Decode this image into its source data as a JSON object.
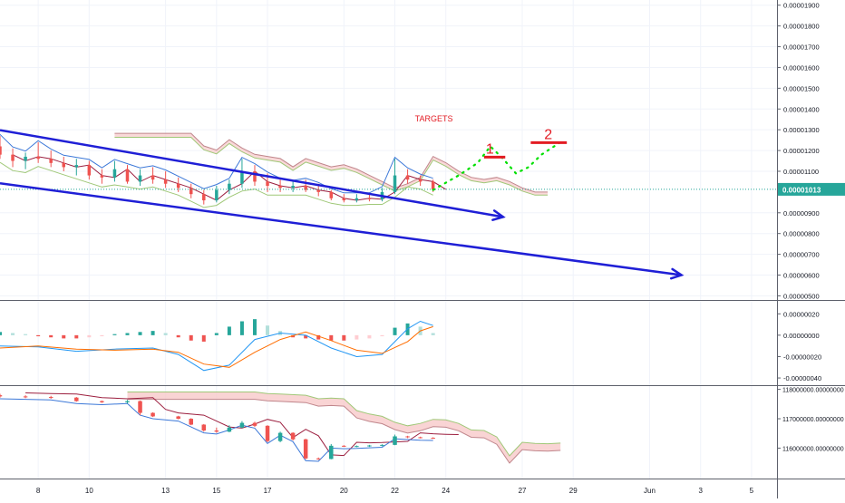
{
  "colors": {
    "up": "#26a69a",
    "down": "#ef5350",
    "trendline": "#1f1fd6",
    "target_line": "#e31b23",
    "projection": "#00e000",
    "last_price_bg": "#26a69a",
    "grid": "#f0f3fa",
    "pane_border": "#5d606b",
    "cloud": "#f7c9c9",
    "cloud_line_a": "#a0c878",
    "cloud_line_b": "#c0868c",
    "kijun": "#9c1f3f",
    "bb": "#3c78d8",
    "macd_line": "#2196f3",
    "signal_line": "#ff6d00",
    "hist_up_strong": "#26a69a",
    "hist_up_weak": "#b2dfdb",
    "hist_down_strong": "#ef5350",
    "hist_down_weak": "#ffcdd2"
  },
  "annotations": {
    "targets_label": "TARGETS",
    "target_1_label": "1",
    "target_2_label": "2",
    "target_1_price": 1.168e-05,
    "target_2_price": 1.238e-05
  },
  "chart_data": [
    {
      "type": "candlestick",
      "pane": "price",
      "yaxis_ticks": [
        "0.00001900",
        "0.00001800",
        "0.00001700",
        "0.00001600",
        "0.00001500",
        "0.00001400",
        "0.00001300",
        "0.00001200",
        "0.00001100",
        "0.00000900",
        "0.00000800",
        "0.00000700",
        "0.00000600",
        "0.00000500"
      ],
      "last_price": "0.00001013",
      "last_price_value": 1.013e-05,
      "ylim": [
        4.8e-06,
        1.925e-05
      ],
      "x_tick_labels": [
        "8",
        "10",
        "13",
        "15",
        "17",
        "20",
        "22",
        "24",
        "27",
        "29",
        "Jun",
        "3",
        "5"
      ],
      "x_tick_dates": [
        "05-08",
        "05-10",
        "05-13",
        "05-15",
        "05-17",
        "05-20",
        "05-22",
        "05-24",
        "05-27",
        "05-29",
        "06-01",
        "06-03",
        "06-05"
      ],
      "x_domain": [
        "05-06 12:00",
        "06-06 00:00"
      ],
      "trendlines": [
        {
          "name": "upper-channel",
          "start": [
            "05-06 12:00",
            1.298e-05
          ],
          "end": [
            "05-26 06:00",
            8.8e-06
          ]
        },
        {
          "name": "lower-channel",
          "start": [
            "05-06 12:00",
            1.042e-05
          ],
          "end": [
            "06-02 06:00",
            6e-06
          ]
        }
      ],
      "target_segments": [
        {
          "name": "target-1",
          "x": [
            "05-25 12:00",
            "05-26 08:00"
          ],
          "y": 1.168e-05
        },
        {
          "name": "target-2",
          "x": [
            "05-27 08:00",
            "05-28 18:00"
          ],
          "y": 1.238e-05
        }
      ],
      "projection_path": [
        [
          "05-23 12:00",
          1.01e-05
        ],
        [
          "05-24 12:00",
          1.08e-05
        ],
        [
          "05-25 06:00",
          1.14e-05
        ],
        [
          "05-25 18:00",
          1.22e-05
        ],
        [
          "05-26 06:00",
          1.16e-05
        ],
        [
          "05-26 18:00",
          1.09e-05
        ],
        [
          "05-27 06:00",
          1.12e-05
        ],
        [
          "05-27 18:00",
          1.18e-05
        ],
        [
          "05-28 12:00",
          1.24e-05
        ]
      ],
      "candles": [
        {
          "t": "05-06 12:00",
          "o": 1.22e-05,
          "h": 1.27e-05,
          "l": 1.16e-05,
          "c": 1.18e-05
        },
        {
          "t": "05-07 00:00",
          "o": 1.18e-05,
          "h": 1.21e-05,
          "l": 1.12e-05,
          "c": 1.15e-05
        },
        {
          "t": "05-07 12:00",
          "o": 1.15e-05,
          "h": 1.19e-05,
          "l": 1.11e-05,
          "c": 1.17e-05
        },
        {
          "t": "05-08 00:00",
          "o": 1.17e-05,
          "h": 1.24e-05,
          "l": 1.14e-05,
          "c": 1.16e-05
        },
        {
          "t": "05-08 12:00",
          "o": 1.16e-05,
          "h": 1.2e-05,
          "l": 1.12e-05,
          "c": 1.14e-05
        },
        {
          "t": "05-09 00:00",
          "o": 1.14e-05,
          "h": 1.17e-05,
          "l": 1.1e-05,
          "c": 1.12e-05
        },
        {
          "t": "05-09 12:00",
          "o": 1.12e-05,
          "h": 1.16e-05,
          "l": 1.08e-05,
          "c": 1.13e-05
        },
        {
          "t": "05-10 00:00",
          "o": 1.13e-05,
          "h": 1.15e-05,
          "l": 1.06e-05,
          "c": 1.08e-05
        },
        {
          "t": "05-10 12:00",
          "o": 1.08e-05,
          "h": 1.11e-05,
          "l": 1.04e-05,
          "c": 1.07e-05
        },
        {
          "t": "05-11 00:00",
          "o": 1.07e-05,
          "h": 1.15e-05,
          "l": 1.05e-05,
          "c": 1.11e-05
        },
        {
          "t": "05-11 12:00",
          "o": 1.11e-05,
          "h": 1.13e-05,
          "l": 1.04e-05,
          "c": 1.05e-05
        },
        {
          "t": "05-12 00:00",
          "o": 1.05e-05,
          "h": 1.11e-05,
          "l": 1.03e-05,
          "c": 1.08e-05
        },
        {
          "t": "05-12 12:00",
          "o": 1.08e-05,
          "h": 1.12e-05,
          "l": 1.04e-05,
          "c": 1.06e-05
        },
        {
          "t": "05-13 00:00",
          "o": 1.06e-05,
          "h": 1.1e-05,
          "l": 1.02e-05,
          "c": 1.04e-05
        },
        {
          "t": "05-13 12:00",
          "o": 1.04e-05,
          "h": 1.07e-05,
          "l": 1e-05,
          "c": 1.02e-05
        },
        {
          "t": "05-14 00:00",
          "o": 1.02e-05,
          "h": 1.04e-05,
          "l": 9.7e-06,
          "c": 9.9e-06
        },
        {
          "t": "05-14 12:00",
          "o": 9.9e-06,
          "h": 1.01e-05,
          "l": 9.4e-06,
          "c": 9.6e-06
        },
        {
          "t": "05-15 00:00",
          "o": 9.6e-06,
          "h": 1.03e-05,
          "l": 9.5e-06,
          "c": 1.01e-05
        },
        {
          "t": "05-15 12:00",
          "o": 1.01e-05,
          "h": 1.06e-05,
          "l": 9.9e-06,
          "c": 1.04e-05
        },
        {
          "t": "05-16 00:00",
          "o": 1.04e-05,
          "h": 1.16e-05,
          "l": 1.02e-05,
          "c": 1.1e-05
        },
        {
          "t": "05-16 12:00",
          "o": 1.1e-05,
          "h": 1.13e-05,
          "l": 1.03e-05,
          "c": 1.05e-05
        },
        {
          "t": "05-17 00:00",
          "o": 1.05e-05,
          "h": 1.09e-05,
          "l": 1e-05,
          "c": 1.03e-05
        },
        {
          "t": "05-17 12:00",
          "o": 1.03e-05,
          "h": 1.06e-05,
          "l": 1e-05,
          "c": 1.02e-05
        },
        {
          "t": "05-18 00:00",
          "o": 1.02e-05,
          "h": 1.05e-05,
          "l": 1e-05,
          "c": 1.03e-05
        },
        {
          "t": "05-18 12:00",
          "o": 1.03e-05,
          "h": 1.06e-05,
          "l": 1e-05,
          "c": 1.01e-05
        },
        {
          "t": "05-19 00:00",
          "o": 1.01e-05,
          "h": 1.04e-05,
          "l": 9.8e-06,
          "c": 1e-05
        },
        {
          "t": "05-19 12:00",
          "o": 1e-05,
          "h": 1.01e-05,
          "l": 9.6e-06,
          "c": 9.7e-06
        },
        {
          "t": "05-20 00:00",
          "o": 9.7e-06,
          "h": 9.9e-06,
          "l": 9.5e-06,
          "c": 9.6e-06
        },
        {
          "t": "05-20 12:00",
          "o": 9.6e-06,
          "h": 9.9e-06,
          "l": 9.5e-06,
          "c": 9.7e-06
        },
        {
          "t": "05-21 00:00",
          "o": 9.7e-06,
          "h": 9.9e-06,
          "l": 9.55e-06,
          "c": 9.65e-06
        },
        {
          "t": "05-21 12:00",
          "o": 9.65e-06,
          "h": 1.02e-05,
          "l": 9.55e-06,
          "c": 1e-05
        },
        {
          "t": "05-22 00:00",
          "o": 1e-05,
          "h": 1.16e-05,
          "l": 9.9e-06,
          "c": 1.08e-05
        },
        {
          "t": "05-22 12:00",
          "o": 1.08e-05,
          "h": 1.11e-05,
          "l": 1.04e-05,
          "c": 1.06e-05
        },
        {
          "t": "05-23 00:00",
          "o": 1.06e-05,
          "h": 1.08e-05,
          "l": 1.03e-05,
          "c": 1.05e-05
        },
        {
          "t": "05-23 12:00",
          "o": 1.05e-05,
          "h": 1.06e-05,
          "l": 1e-05,
          "c": 1.013e-05
        }
      ]
    },
    {
      "type": "bar",
      "pane": "macd",
      "yaxis_ticks": [
        "0.00000020",
        "0.00000000",
        "-0.00000020",
        "-0.00000040"
      ],
      "ylim": [
        -4.25e-07,
        2.7e-07
      ],
      "x_domain": [
        "05-06 12:00",
        "06-06 00:00"
      ],
      "histogram": [
        {
          "t": "05-06 12:00",
          "v": 3e-08
        },
        {
          "t": "05-07 00:00",
          "v": 2e-08
        },
        {
          "t": "05-07 12:00",
          "v": 1e-08
        },
        {
          "t": "05-08 00:00",
          "v": -1e-08
        },
        {
          "t": "05-08 12:00",
          "v": -2e-08
        },
        {
          "t": "05-09 00:00",
          "v": -3e-08
        },
        {
          "t": "05-09 12:00",
          "v": -3e-08
        },
        {
          "t": "05-10 00:00",
          "v": -2e-08
        },
        {
          "t": "05-10 12:00",
          "v": -1e-08
        },
        {
          "t": "05-11 00:00",
          "v": 1e-08
        },
        {
          "t": "05-11 12:00",
          "v": 2e-08
        },
        {
          "t": "05-12 00:00",
          "v": 3e-08
        },
        {
          "t": "05-12 12:00",
          "v": 4e-08
        },
        {
          "t": "05-13 00:00",
          "v": 2e-08
        },
        {
          "t": "05-13 12:00",
          "v": -2e-08
        },
        {
          "t": "05-14 00:00",
          "v": -5e-08
        },
        {
          "t": "05-14 12:00",
          "v": -6e-08
        },
        {
          "t": "05-15 00:00",
          "v": 2e-08
        },
        {
          "t": "05-15 12:00",
          "v": 8e-08
        },
        {
          "t": "05-16 00:00",
          "v": 1.3e-07
        },
        {
          "t": "05-16 12:00",
          "v": 1.5e-07
        },
        {
          "t": "05-17 00:00",
          "v": 9e-08
        },
        {
          "t": "05-17 12:00",
          "v": 4e-08
        },
        {
          "t": "05-18 00:00",
          "v": -2e-08
        },
        {
          "t": "05-18 12:00",
          "v": -3e-08
        },
        {
          "t": "05-19 00:00",
          "v": -4e-08
        },
        {
          "t": "05-19 12:00",
          "v": -5e-08
        },
        {
          "t": "05-20 00:00",
          "v": -5e-08
        },
        {
          "t": "05-20 12:00",
          "v": -4e-08
        },
        {
          "t": "05-21 00:00",
          "v": -3e-08
        },
        {
          "t": "05-21 12:00",
          "v": -1e-08
        },
        {
          "t": "05-22 00:00",
          "v": 7e-08
        },
        {
          "t": "05-22 12:00",
          "v": 1.1e-07
        },
        {
          "t": "05-23 00:00",
          "v": 8e-08
        },
        {
          "t": "05-23 12:00",
          "v": 2e-08
        }
      ],
      "macd_line": [
        [
          "05-06 12:00",
          -1e-07
        ],
        [
          "05-08 00:00",
          -1.1e-07
        ],
        [
          "05-09 12:00",
          -1.5e-07
        ],
        [
          "05-11 00:00",
          -1.3e-07
        ],
        [
          "05-12 12:00",
          -1.2e-07
        ],
        [
          "05-13 12:00",
          -1.8e-07
        ],
        [
          "05-14 12:00",
          -3.3e-07
        ],
        [
          "05-15 12:00",
          -2.8e-07
        ],
        [
          "05-16 12:00",
          -4e-08
        ],
        [
          "05-17 12:00",
          2e-08
        ],
        [
          "05-18 12:00",
          0.0
        ],
        [
          "05-19 12:00",
          -1.2e-07
        ],
        [
          "05-20 12:00",
          -2e-07
        ],
        [
          "05-21 12:00",
          -1.8e-07
        ],
        [
          "05-22 12:00",
          6e-08
        ],
        [
          "05-23 00:00",
          1.3e-07
        ],
        [
          "05-23 12:00",
          9e-08
        ]
      ],
      "signal_line": [
        [
          "05-06 12:00",
          -1.2e-07
        ],
        [
          "05-08 00:00",
          -1e-07
        ],
        [
          "05-09 12:00",
          -1.3e-07
        ],
        [
          "05-11 00:00",
          -1.4e-07
        ],
        [
          "05-12 12:00",
          -1.3e-07
        ],
        [
          "05-13 12:00",
          -1.6e-07
        ],
        [
          "05-14 12:00",
          -2.7e-07
        ],
        [
          "05-15 12:00",
          -3e-07
        ],
        [
          "05-16 12:00",
          -1.6e-07
        ],
        [
          "05-17 12:00",
          -4e-08
        ],
        [
          "05-18 12:00",
          3e-08
        ],
        [
          "05-19 12:00",
          -5e-08
        ],
        [
          "05-20 12:00",
          -1.4e-07
        ],
        [
          "05-21 12:00",
          -1.7e-07
        ],
        [
          "05-22 12:00",
          -6e-08
        ],
        [
          "05-23 00:00",
          4e-08
        ],
        [
          "05-23 12:00",
          8e-08
        ]
      ]
    },
    {
      "type": "candlestick",
      "pane": "bottom",
      "yaxis_ticks": [
        "118000000.00000000",
        "117000000.00000000",
        "116000000.00000000"
      ],
      "ylim": [
        115150000,
        118050000
      ],
      "x_domain": [
        "05-06 12:00",
        "06-06 00:00"
      ],
      "candles": [
        {
          "t": "05-06 12:00",
          "o": 117800000,
          "h": 117850000,
          "l": 117720000,
          "c": 117760000
        },
        {
          "t": "05-07 12:00",
          "o": 117760000,
          "h": 117800000,
          "l": 117700000,
          "c": 117740000
        },
        {
          "t": "05-08 12:00",
          "o": 117740000,
          "h": 117780000,
          "l": 117680000,
          "c": 117720000
        },
        {
          "t": "05-09 12:00",
          "o": 117720000,
          "h": 117740000,
          "l": 117580000,
          "c": 117600000
        },
        {
          "t": "05-10 12:00",
          "o": 117600000,
          "h": 117620000,
          "l": 117540000,
          "c": 117560000
        },
        {
          "t": "05-11 12:00",
          "o": 117560000,
          "h": 117640000,
          "l": 117520000,
          "c": 117600000
        },
        {
          "t": "05-12 00:00",
          "o": 117600000,
          "h": 117620000,
          "l": 117120000,
          "c": 117200000
        },
        {
          "t": "05-12 12:00",
          "o": 117200000,
          "h": 117220000,
          "l": 117060000,
          "c": 117080000
        },
        {
          "t": "05-13 12:00",
          "o": 117080000,
          "h": 117100000,
          "l": 116980000,
          "c": 117000000
        },
        {
          "t": "05-14 00:00",
          "o": 117000000,
          "h": 117020000,
          "l": 116780000,
          "c": 116800000
        },
        {
          "t": "05-14 12:00",
          "o": 116800000,
          "h": 116820000,
          "l": 116560000,
          "c": 116600000
        },
        {
          "t": "05-15 00:00",
          "o": 116600000,
          "h": 116700000,
          "l": 116520000,
          "c": 116560000
        },
        {
          "t": "05-15 12:00",
          "o": 116560000,
          "h": 116780000,
          "l": 116540000,
          "c": 116700000
        },
        {
          "t": "05-16 00:00",
          "o": 116700000,
          "h": 116920000,
          "l": 116680000,
          "c": 116860000
        },
        {
          "t": "05-16 12:00",
          "o": 116860000,
          "h": 116900000,
          "l": 116720000,
          "c": 116760000
        },
        {
          "t": "05-17 00:00",
          "o": 116760000,
          "h": 116780000,
          "l": 116200000,
          "c": 116240000
        },
        {
          "t": "05-17 12:00",
          "o": 116240000,
          "h": 116560000,
          "l": 116200000,
          "c": 116520000
        },
        {
          "t": "05-18 00:00",
          "o": 116520000,
          "h": 116540000,
          "l": 116260000,
          "c": 116300000
        },
        {
          "t": "05-18 12:00",
          "o": 116300000,
          "h": 116320000,
          "l": 115620000,
          "c": 115650000
        },
        {
          "t": "05-19 00:00",
          "o": 115650000,
          "h": 115680000,
          "l": 115600000,
          "c": 115630000
        },
        {
          "t": "05-19 12:00",
          "o": 115630000,
          "h": 116140000,
          "l": 115620000,
          "c": 116080000
        },
        {
          "t": "05-20 00:00",
          "o": 116080000,
          "h": 116100000,
          "l": 116040000,
          "c": 116060000
        },
        {
          "t": "05-20 12:00",
          "o": 116060000,
          "h": 116090000,
          "l": 116030000,
          "c": 116070000
        },
        {
          "t": "05-21 00:00",
          "o": 116070000,
          "h": 116110000,
          "l": 116040000,
          "c": 116090000
        },
        {
          "t": "05-21 12:00",
          "o": 116090000,
          "h": 116130000,
          "l": 116060000,
          "c": 116110000
        },
        {
          "t": "05-22 00:00",
          "o": 116110000,
          "h": 116460000,
          "l": 116100000,
          "c": 116400000
        },
        {
          "t": "05-22 12:00",
          "o": 116400000,
          "h": 116420000,
          "l": 116340000,
          "c": 116370000
        },
        {
          "t": "05-23 00:00",
          "o": 116370000,
          "h": 116390000,
          "l": 116330000,
          "c": 116350000
        },
        {
          "t": "05-23 12:00",
          "o": 116350000,
          "h": 116370000,
          "l": 116320000,
          "c": 116340000
        }
      ]
    }
  ]
}
